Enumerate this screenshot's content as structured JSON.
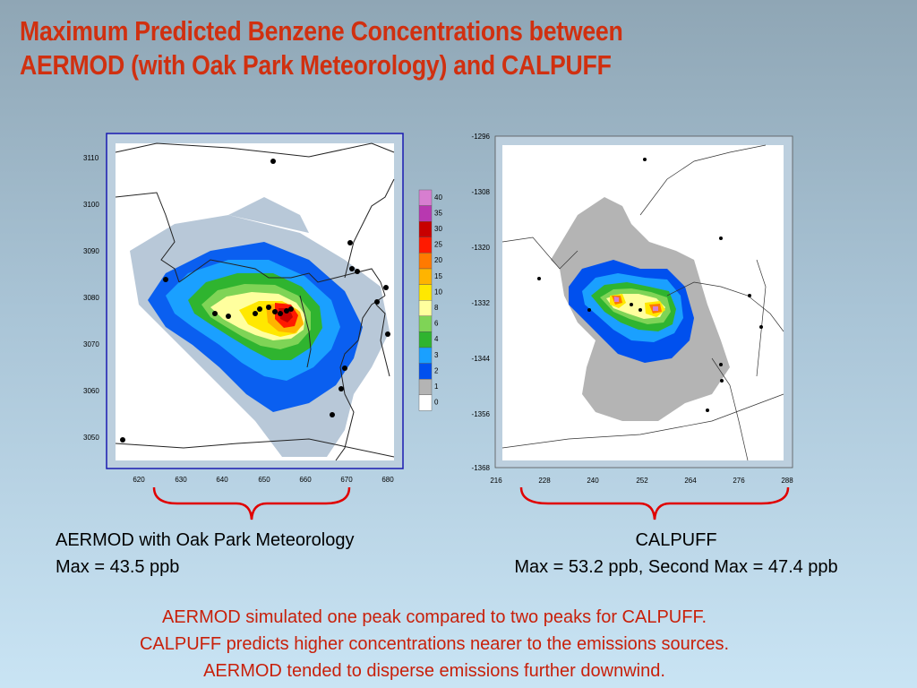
{
  "title": {
    "line1": "Maximum Predicted Benzene Concentrations between",
    "line2": "AERMOD (with Oak Park Meteorology) and CALPUFF"
  },
  "colors": {
    "title": "#d03010",
    "summary": "#c8200a",
    "brace": "#e00000"
  },
  "left_map": {
    "x_ticks": [
      "620",
      "630",
      "640",
      "650",
      "660",
      "670",
      "680"
    ],
    "y_ticks": [
      "3110",
      "3100",
      "3090",
      "3080",
      "3070",
      "3060",
      "3050"
    ]
  },
  "legend": {
    "levels": [
      "40",
      "35",
      "30",
      "25",
      "20",
      "15",
      "10",
      "8",
      "6",
      "4",
      "3",
      "2",
      "1",
      "0"
    ],
    "colors": [
      "#d77ed0",
      "#b838b0",
      "#c80000",
      "#ff1a00",
      "#ff7a00",
      "#ffb400",
      "#ffe800",
      "#ffff9e",
      "#7fd456",
      "#2fb42f",
      "#1aa0ff",
      "#0050ee",
      "#b4b4b4",
      "#ffffff"
    ]
  },
  "right_map": {
    "x_ticks": [
      "216",
      "228",
      "240",
      "252",
      "264",
      "276",
      "288"
    ],
    "y_ticks": [
      "-1296",
      "-1308",
      "-1320",
      "-1332",
      "-1344",
      "-1356",
      "-1368"
    ]
  },
  "captions": {
    "aermod_line1": "AERMOD with Oak Park Meteorology",
    "aermod_line2": "Max = 43.5 ppb",
    "calpuff_line1": "CALPUFF",
    "calpuff_line2": "Max = 53.2 ppb, Second Max = 47.4 ppb"
  },
  "summary": {
    "line1": "AERMOD simulated one peak compared to two peaks for CALPUFF.",
    "line2": "CALPUFF predicts higher concentrations nearer to the emissions sources.",
    "line3": "AERMOD tended to disperse emissions further downwind."
  }
}
